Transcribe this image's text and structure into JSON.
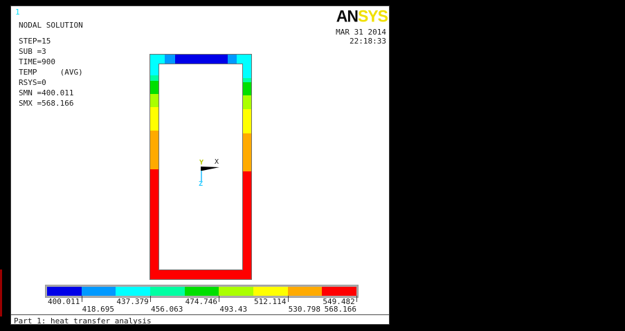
{
  "header": {
    "plot_number": "1",
    "logo_an": "AN",
    "logo_sys": "SYS",
    "date": "MAR 31 2014",
    "time": "22:18:33"
  },
  "solution_info": {
    "title": "NODAL SOLUTION",
    "details": "STEP=15\nSUB =3\nTIME=900\nTEMP     (AVG)\nRSYS=0\nSMN =400.011\nSMX =568.166"
  },
  "triad": {
    "x": "X",
    "y": "Y",
    "z": "Z"
  },
  "model": {
    "top_bands": [
      {
        "color": "#00FFFF",
        "size": 21
      },
      {
        "color": "#0099FF",
        "size": 15
      },
      {
        "color": "#0000E8",
        "size": 76
      },
      {
        "color": "#0099FF",
        "size": 13
      },
      {
        "color": "#00FFFF",
        "size": 21
      }
    ],
    "left_bands": [
      {
        "color": "#00FFFF",
        "size": 30
      },
      {
        "color": "#00FFA2",
        "size": 8
      },
      {
        "color": "#00DF00",
        "size": 19
      },
      {
        "color": "#AAFF00",
        "size": 19
      },
      {
        "color": "#FFFF00",
        "size": 34
      },
      {
        "color": "#FFAA00",
        "size": 56
      },
      {
        "color": "#FF0000",
        "size": 159
      }
    ],
    "right_bands": [
      {
        "color": "#00FFFF",
        "size": 34
      },
      {
        "color": "#00FFA2",
        "size": 6
      },
      {
        "color": "#00DF00",
        "size": 19
      },
      {
        "color": "#AAFF00",
        "size": 20
      },
      {
        "color": "#FFFF00",
        "size": 35
      },
      {
        "color": "#FFAA00",
        "size": 55
      },
      {
        "color": "#FF0000",
        "size": 156
      }
    ],
    "bottom_color": "#FF0000"
  },
  "legend": {
    "colors": [
      "#0000E8",
      "#0099FF",
      "#00FFFF",
      "#00FFA2",
      "#00DF00",
      "#AAFF00",
      "#FFFF00",
      "#FFAA00",
      "#FF0000"
    ],
    "labels_row1": [
      "400.011",
      "437.379",
      "474.746",
      "512.114",
      "549.482"
    ],
    "labels_row2": [
      "418.695",
      "456.063",
      "493.43",
      "530.798"
    ],
    "label_last": "568.166"
  },
  "footer": {
    "caption": "Part 1: heat transfer analysis"
  },
  "chart_data": {
    "type": "heatmap",
    "title": "NODAL SOLUTION",
    "quantity": "TEMP (AVG)",
    "step": 15,
    "sub": 3,
    "time": 900,
    "rsys": 0,
    "smn": 400.011,
    "smx": 568.166,
    "contour_levels": [
      400.011,
      418.695,
      437.379,
      456.063,
      474.746,
      493.43,
      512.114,
      530.798,
      549.482,
      568.166
    ],
    "palette": [
      "#0000E8",
      "#0099FF",
      "#00FFFF",
      "#00FFA2",
      "#00DF00",
      "#AAFF00",
      "#FFFF00",
      "#FFAA00",
      "#FF0000"
    ],
    "legend_position": "bottom"
  }
}
